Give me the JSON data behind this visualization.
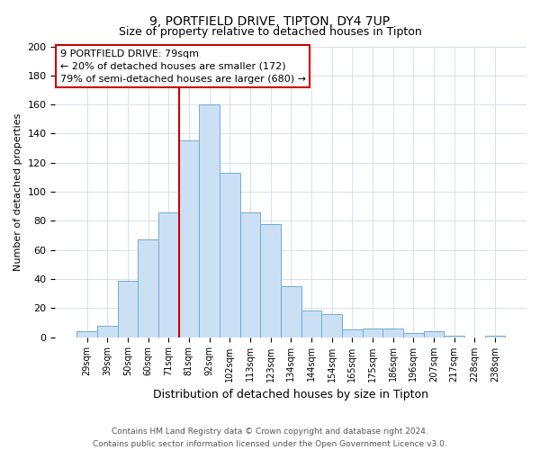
{
  "title": "9, PORTFIELD DRIVE, TIPTON, DY4 7UP",
  "subtitle": "Size of property relative to detached houses in Tipton",
  "xlabel": "Distribution of detached houses by size in Tipton",
  "ylabel": "Number of detached properties",
  "bar_labels": [
    "29sqm",
    "39sqm",
    "50sqm",
    "60sqm",
    "71sqm",
    "81sqm",
    "92sqm",
    "102sqm",
    "113sqm",
    "123sqm",
    "134sqm",
    "144sqm",
    "154sqm",
    "165sqm",
    "175sqm",
    "186sqm",
    "196sqm",
    "207sqm",
    "217sqm",
    "228sqm",
    "238sqm"
  ],
  "bar_values": [
    4,
    8,
    39,
    67,
    86,
    135,
    160,
    113,
    86,
    78,
    35,
    18,
    16,
    5,
    6,
    6,
    3,
    4,
    1,
    0,
    1
  ],
  "bar_color": "#cce0f5",
  "bar_edge_color": "#6baed6",
  "vline_color": "#cc0000",
  "ylim": [
    0,
    200
  ],
  "yticks": [
    0,
    20,
    40,
    60,
    80,
    100,
    120,
    140,
    160,
    180,
    200
  ],
  "annotation_title": "9 PORTFIELD DRIVE: 79sqm",
  "annotation_line1": "← 20% of detached houses are smaller (172)",
  "annotation_line2": "79% of semi-detached houses are larger (680) →",
  "annotation_box_color": "#ffffff",
  "annotation_box_edge": "#cc0000",
  "footer1": "Contains HM Land Registry data © Crown copyright and database right 2024.",
  "footer2": "Contains public sector information licensed under the Open Government Licence v3.0.",
  "bg_color": "#ffffff",
  "plot_bg_color": "#ffffff",
  "grid_color": "#d0dce8"
}
